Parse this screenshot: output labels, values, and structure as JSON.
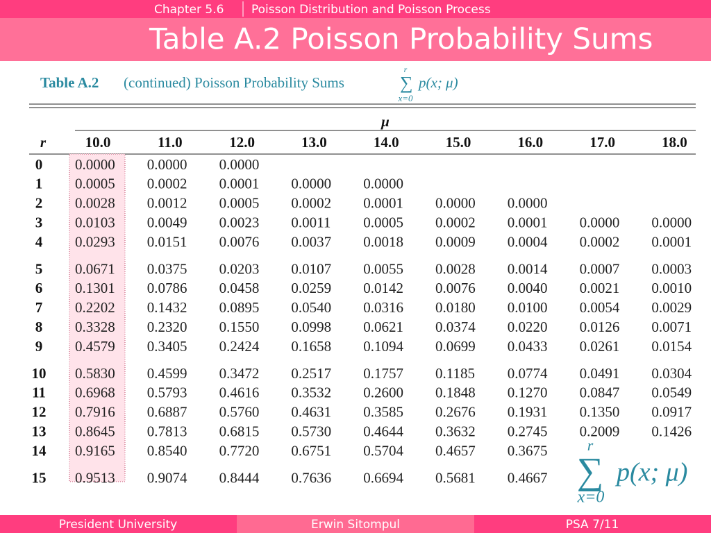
{
  "header": {
    "chapter": "Chapter 5.6",
    "section": "Poisson Distribution and Poisson Process",
    "title": "Table A.2 Poisson Probability Sums"
  },
  "caption": {
    "label": "Table A.2",
    "text": "(continued) Poisson Probability Sums",
    "sum_top": "r",
    "sum_bottom": "x=0",
    "term": "p(x; μ)"
  },
  "table": {
    "mu_label": "μ",
    "r_label": "r",
    "columns": [
      "10.0",
      "11.0",
      "12.0",
      "13.0",
      "14.0",
      "15.0",
      "16.0",
      "17.0",
      "18.0"
    ],
    "rows": [
      {
        "r": "0",
        "values": [
          "0.0000",
          "0.0000",
          "0.0000"
        ]
      },
      {
        "r": "1",
        "values": [
          "0.0005",
          "0.0002",
          "0.0001",
          "0.0000",
          "0.0000"
        ]
      },
      {
        "r": "2",
        "values": [
          "0.0028",
          "0.0012",
          "0.0005",
          "0.0002",
          "0.0001",
          "0.0000",
          "0.0000"
        ]
      },
      {
        "r": "3",
        "values": [
          "0.0103",
          "0.0049",
          "0.0023",
          "0.0011",
          "0.0005",
          "0.0002",
          "0.0001",
          "0.0000",
          "0.0000"
        ]
      },
      {
        "r": "4",
        "values": [
          "0.0293",
          "0.0151",
          "0.0076",
          "0.0037",
          "0.0018",
          "0.0009",
          "0.0004",
          "0.0002",
          "0.0001"
        ]
      },
      {
        "r": "5",
        "values": [
          "0.0671",
          "0.0375",
          "0.0203",
          "0.0107",
          "0.0055",
          "0.0028",
          "0.0014",
          "0.0007",
          "0.0003"
        ]
      },
      {
        "r": "6",
        "values": [
          "0.1301",
          "0.0786",
          "0.0458",
          "0.0259",
          "0.0142",
          "0.0076",
          "0.0040",
          "0.0021",
          "0.0010"
        ]
      },
      {
        "r": "7",
        "values": [
          "0.2202",
          "0.1432",
          "0.0895",
          "0.0540",
          "0.0316",
          "0.0180",
          "0.0100",
          "0.0054",
          "0.0029"
        ]
      },
      {
        "r": "8",
        "values": [
          "0.3328",
          "0.2320",
          "0.1550",
          "0.0998",
          "0.0621",
          "0.0374",
          "0.0220",
          "0.0126",
          "0.0071"
        ]
      },
      {
        "r": "9",
        "values": [
          "0.4579",
          "0.3405",
          "0.2424",
          "0.1658",
          "0.1094",
          "0.0699",
          "0.0433",
          "0.0261",
          "0.0154"
        ]
      },
      {
        "r": "10",
        "values": [
          "0.5830",
          "0.4599",
          "0.3472",
          "0.2517",
          "0.1757",
          "0.1185",
          "0.0774",
          "0.0491",
          "0.0304"
        ]
      },
      {
        "r": "11",
        "values": [
          "0.6968",
          "0.5793",
          "0.4616",
          "0.3532",
          "0.2600",
          "0.1848",
          "0.1270",
          "0.0847",
          "0.0549"
        ]
      },
      {
        "r": "12",
        "values": [
          "0.7916",
          "0.6887",
          "0.5760",
          "0.4631",
          "0.3585",
          "0.2676",
          "0.1931",
          "0.1350",
          "0.0917"
        ]
      },
      {
        "r": "13",
        "values": [
          "0.8645",
          "0.7813",
          "0.6815",
          "0.5730",
          "0.4644",
          "0.3632",
          "0.2745",
          "0.2009",
          "0.1426"
        ]
      },
      {
        "r": "14",
        "values": [
          "0.9165",
          "0.8540",
          "0.7720",
          "0.6751",
          "0.5704",
          "0.4657",
          "0.3675"
        ]
      },
      {
        "r": "15",
        "values": [
          "0.9513",
          "0.9074",
          "0.8444",
          "0.7636",
          "0.6694",
          "0.5681",
          "0.4667"
        ]
      }
    ]
  },
  "formula": {
    "sum_top": "r",
    "sum_bottom": "x=0",
    "term": "p(x; μ)"
  },
  "footer": {
    "left": "President University",
    "center": "Erwin Sitompul",
    "right": "PSA 7/11"
  }
}
